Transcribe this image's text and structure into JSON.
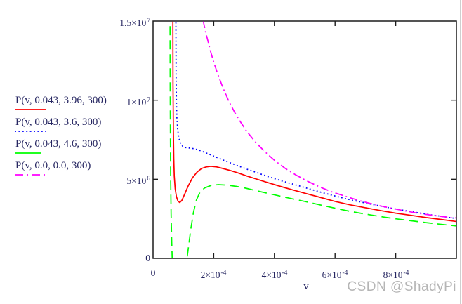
{
  "page": {
    "background": "#ffffff",
    "text_color": "#262661",
    "axis_color": "#1c1c1c",
    "edge_line_color": "#cfcfcf"
  },
  "watermark": {
    "text": "CSDN @ShadyPi",
    "color": "#b5b5b5"
  },
  "chart_data": {
    "type": "line",
    "title": "",
    "xlabel": "v",
    "ylabel": "",
    "xlim": [
      0,
      0.001
    ],
    "ylim": [
      0,
      15000000
    ],
    "grid": false,
    "legend_position": "left-outside",
    "x_ticks": [
      {
        "value": 0,
        "mantissa": "0",
        "exp": ""
      },
      {
        "value": 0.0002,
        "mantissa": "2×10",
        "exp": "-4"
      },
      {
        "value": 0.0004,
        "mantissa": "4×10",
        "exp": "-4"
      },
      {
        "value": 0.0006,
        "mantissa": "6×10",
        "exp": "-4"
      },
      {
        "value": 0.0008,
        "mantissa": "8×10",
        "exp": "-4"
      }
    ],
    "y_ticks": [
      {
        "value": 15000000,
        "mantissa": "1.5×10",
        "exp": "7"
      },
      {
        "value": 10000000,
        "mantissa": "1×10",
        "exp": "7"
      },
      {
        "value": 5000000,
        "mantissa": "5×10",
        "exp": "6"
      },
      {
        "value": 0,
        "mantissa": "0",
        "exp": ""
      }
    ],
    "point_scale": {
      "x": 0.0001,
      "y": 1000000
    },
    "series": [
      {
        "name": "P(v, 0.043, 3.96, 300)",
        "color": "#ff0000",
        "style": "solid",
        "points": [
          [
            0.648,
            20
          ],
          [
            0.652,
            15
          ],
          [
            0.658,
            11
          ],
          [
            0.668,
            8.2
          ],
          [
            0.682,
            6.3
          ],
          [
            0.7,
            5.2
          ],
          [
            0.73,
            4.4
          ],
          [
            0.77,
            3.9
          ],
          [
            0.82,
            3.62
          ],
          [
            0.88,
            3.53
          ],
          [
            0.95,
            3.66
          ],
          [
            1.05,
            4.1
          ],
          [
            1.15,
            4.55
          ],
          [
            1.3,
            5.1
          ],
          [
            1.45,
            5.45
          ],
          [
            1.6,
            5.68
          ],
          [
            1.75,
            5.78
          ],
          [
            1.9,
            5.82
          ],
          [
            2.1,
            5.78
          ],
          [
            2.3,
            5.68
          ],
          [
            2.55,
            5.55
          ],
          [
            2.8,
            5.4
          ],
          [
            3.1,
            5.2
          ],
          [
            3.4,
            5.02
          ],
          [
            3.8,
            4.78
          ],
          [
            4.2,
            4.55
          ],
          [
            4.6,
            4.33
          ],
          [
            5.0,
            4.12
          ],
          [
            5.5,
            3.86
          ],
          [
            6.0,
            3.6
          ],
          [
            6.5,
            3.38
          ],
          [
            7.0,
            3.2
          ],
          [
            7.5,
            3.02
          ],
          [
            8.0,
            2.86
          ],
          [
            8.5,
            2.72
          ],
          [
            9.0,
            2.58
          ],
          [
            9.5,
            2.46
          ],
          [
            10.0,
            2.33
          ]
        ]
      },
      {
        "name": "P(v, 0.043, 3.6, 300)",
        "color": "#0000ff",
        "style": "dotted",
        "points": [
          [
            0.748,
            20
          ],
          [
            0.752,
            15
          ],
          [
            0.76,
            11.5
          ],
          [
            0.77,
            9.9
          ],
          [
            0.785,
            8.9
          ],
          [
            0.81,
            8.15
          ],
          [
            0.85,
            7.62
          ],
          [
            0.91,
            7.25
          ],
          [
            0.98,
            7.08
          ],
          [
            1.08,
            7.0
          ],
          [
            1.2,
            6.97
          ],
          [
            1.35,
            6.93
          ],
          [
            1.5,
            6.85
          ],
          [
            1.7,
            6.7
          ],
          [
            1.9,
            6.54
          ],
          [
            2.1,
            6.38
          ],
          [
            2.3,
            6.22
          ],
          [
            2.55,
            6.03
          ],
          [
            2.8,
            5.85
          ],
          [
            3.1,
            5.63
          ],
          [
            3.4,
            5.43
          ],
          [
            3.8,
            5.16
          ],
          [
            4.2,
            4.92
          ],
          [
            4.6,
            4.7
          ],
          [
            5.0,
            4.48
          ],
          [
            5.5,
            4.2
          ],
          [
            6.0,
            3.94
          ],
          [
            6.5,
            3.7
          ],
          [
            7.0,
            3.5
          ],
          [
            7.5,
            3.3
          ],
          [
            8.0,
            3.12
          ],
          [
            8.5,
            2.96
          ],
          [
            9.0,
            2.8
          ],
          [
            9.5,
            2.66
          ],
          [
            10.0,
            2.52
          ]
        ]
      },
      {
        "name": "P(v, 0.043, 4.6, 300)",
        "color": "#00ff00",
        "style": "dashed",
        "points": [
          [
            0.556,
            20
          ],
          [
            0.56,
            15
          ],
          [
            0.565,
            11
          ],
          [
            0.572,
            7.8
          ],
          [
            0.582,
            5.0
          ],
          [
            0.595,
            2.8
          ],
          [
            0.615,
            1.0
          ],
          [
            0.64,
            -0.5
          ],
          [
            0.72,
            -2.6
          ],
          [
            0.85,
            -3.2
          ],
          [
            1.0,
            -1.8
          ],
          [
            1.1,
            -0.3
          ],
          [
            1.16,
            0.6
          ],
          [
            1.24,
            1.8
          ],
          [
            1.33,
            2.9
          ],
          [
            1.43,
            3.7
          ],
          [
            1.55,
            4.2
          ],
          [
            1.7,
            4.45
          ],
          [
            1.9,
            4.6
          ],
          [
            2.15,
            4.66
          ],
          [
            2.45,
            4.63
          ],
          [
            2.75,
            4.55
          ],
          [
            3.05,
            4.44
          ],
          [
            3.4,
            4.28
          ],
          [
            3.8,
            4.1
          ],
          [
            4.2,
            3.93
          ],
          [
            4.6,
            3.76
          ],
          [
            5.0,
            3.6
          ],
          [
            5.5,
            3.38
          ],
          [
            6.0,
            3.17
          ],
          [
            6.5,
            2.97
          ],
          [
            7.0,
            2.8
          ],
          [
            7.5,
            2.64
          ],
          [
            8.0,
            2.5
          ],
          [
            8.5,
            2.38
          ],
          [
            9.0,
            2.26
          ],
          [
            9.5,
            2.15
          ],
          [
            10.0,
            2.05
          ]
        ]
      },
      {
        "name": "P(v, 0.0, 0.0, 300)",
        "color": "#ff00ff",
        "style": "dash-dot",
        "points": [
          [
            1.6,
            16.0
          ],
          [
            1.66,
            14.95
          ],
          [
            1.72,
            14.4
          ],
          [
            1.8,
            13.8
          ],
          [
            1.9,
            13.05
          ],
          [
            2.0,
            12.4
          ],
          [
            2.15,
            11.55
          ],
          [
            2.3,
            10.8
          ],
          [
            2.5,
            9.92
          ],
          [
            2.7,
            9.2
          ],
          [
            2.9,
            8.57
          ],
          [
            3.1,
            8.0
          ],
          [
            3.4,
            7.3
          ],
          [
            3.7,
            6.72
          ],
          [
            4.0,
            6.2
          ],
          [
            4.35,
            5.7
          ],
          [
            4.7,
            5.28
          ],
          [
            5.1,
            4.87
          ],
          [
            5.5,
            4.51
          ],
          [
            5.9,
            4.2
          ],
          [
            6.3,
            3.95
          ],
          [
            6.8,
            3.65
          ],
          [
            7.3,
            3.4
          ],
          [
            7.8,
            3.19
          ],
          [
            8.3,
            3.0
          ],
          [
            8.8,
            2.83
          ],
          [
            9.3,
            2.7
          ],
          [
            9.7,
            2.6
          ],
          [
            10.0,
            2.55
          ]
        ]
      }
    ]
  }
}
